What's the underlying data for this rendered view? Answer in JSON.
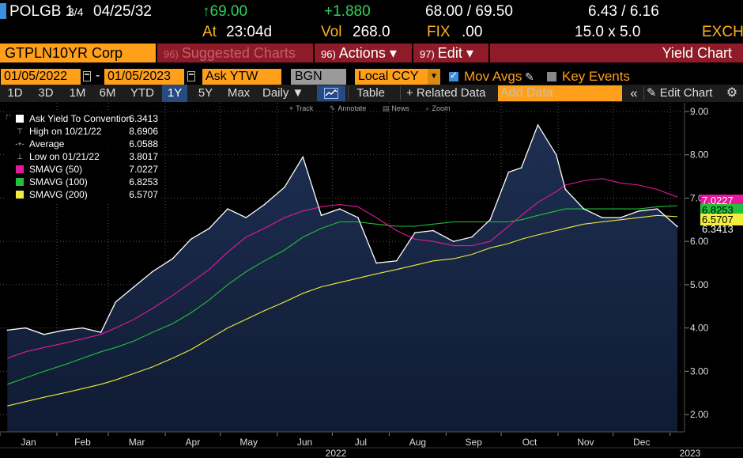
{
  "quote": {
    "security": "POLGB 1",
    "fraction": "3/4",
    "maturity": "04/25/32",
    "last_price": "↑69.00",
    "change": "+1.880",
    "bid_ask": "68.00 / 69.50",
    "yields": "6.43 / 6.16",
    "time_prefix": "At",
    "time": "23:04d",
    "vol_label": "Vol",
    "vol": "268.0",
    "fix_label": "FIX",
    "fix": ".00",
    "size": "15.0 x 5.0",
    "exchange": "EXCH"
  },
  "command_bar": {
    "ticker": "GTPLN10YR Corp",
    "suggested_num": "96)",
    "suggested_label": "Suggested Charts",
    "actions_num": "96)",
    "actions_label": "Actions ▾",
    "edit_num": "97)",
    "edit_label": "Edit ▾",
    "title": "Yield Chart"
  },
  "options": {
    "start_date": "01/05/2022",
    "end_date": "01/05/2023",
    "date_separator": "-",
    "field": "Ask YTW",
    "source": "BGN",
    "currency": "Local CCY",
    "mov_avgs": "Mov Avgs",
    "key_events": "Key Events"
  },
  "period_bar": {
    "periods": [
      "1D",
      "3D",
      "1M",
      "6M",
      "YTD",
      "1Y",
      "5Y",
      "Max"
    ],
    "active": "1Y",
    "frequency": "Daily ▼",
    "table": "Table",
    "related": "+ Related Data",
    "add_data_placeholder": "Add Data",
    "collapse": "«",
    "edit_chart": "✎ Edit Chart",
    "settings": "⚙"
  },
  "mini_toolbar": {
    "track": "Track",
    "annotate": "Annotate",
    "news": "News",
    "zoom": "Zoom"
  },
  "legend": [
    {
      "label": "Ask Yield To Convention",
      "value": "6.3413",
      "color": "#ffffff",
      "kind": "swatch"
    },
    {
      "label": "High on 10/21/22",
      "value": "8.6906",
      "color": "#cccccc",
      "kind": "high"
    },
    {
      "label": "Average",
      "value": "6.0588",
      "color": "#cccccc",
      "kind": "avg"
    },
    {
      "label": "Low on 01/21/22",
      "value": "3.8017",
      "color": "#cccccc",
      "kind": "low"
    },
    {
      "label": "SMAVG (50)",
      "value": "7.0227",
      "color": "#e6199b",
      "kind": "swatch"
    },
    {
      "label": "SMAVG (100)",
      "value": "6.8253",
      "color": "#21c13a",
      "kind": "swatch"
    },
    {
      "label": "SMAVG (200)",
      "value": "6.5707",
      "color": "#f2ec3c",
      "kind": "swatch"
    }
  ],
  "price_tags": [
    {
      "value": "7.0227",
      "color": "#e6199b"
    },
    {
      "value": "6.8253",
      "color": "#21c13a"
    },
    {
      "value": "6.5707",
      "color": "#f2ec3c"
    },
    {
      "value": "6.3413",
      "color": "#ffffff"
    }
  ],
  "chart_data": {
    "type": "area",
    "ylim": [
      1.6,
      9.2
    ],
    "y_ticks": [
      "2.00",
      "3.00",
      "4.00",
      "5.00",
      "6.00",
      "7.00",
      "8.00",
      "9.00"
    ],
    "x_months": [
      "Jan",
      "Feb",
      "Mar",
      "Apr",
      "May",
      "Jun",
      "Jul",
      "Aug",
      "Sep",
      "Oct",
      "Nov",
      "Dec"
    ],
    "x_year_labels": [
      "2022",
      "2023"
    ],
    "grid": true,
    "x": [
      "2022-01-05",
      "2022-01-15",
      "2022-01-25",
      "2022-02-05",
      "2022-02-15",
      "2022-02-25",
      "2022-03-05",
      "2022-03-15",
      "2022-03-25",
      "2022-04-05",
      "2022-04-15",
      "2022-04-25",
      "2022-05-05",
      "2022-05-15",
      "2022-05-25",
      "2022-06-05",
      "2022-06-15",
      "2022-06-25",
      "2022-07-05",
      "2022-07-15",
      "2022-07-25",
      "2022-08-05",
      "2022-08-15",
      "2022-08-25",
      "2022-09-05",
      "2022-09-15",
      "2022-09-25",
      "2022-10-05",
      "2022-10-12",
      "2022-10-21",
      "2022-10-31",
      "2022-11-05",
      "2022-11-15",
      "2022-11-25",
      "2022-12-05",
      "2022-12-15",
      "2022-12-25",
      "2023-01-05"
    ],
    "series": [
      {
        "name": "Ask Yield To Convention",
        "color": "#ffffff",
        "values": [
          3.95,
          4.0,
          3.85,
          3.95,
          4.0,
          3.9,
          4.6,
          4.95,
          5.3,
          5.6,
          6.05,
          6.3,
          6.75,
          6.55,
          6.85,
          7.25,
          7.95,
          6.6,
          6.75,
          6.55,
          5.5,
          5.55,
          6.2,
          6.25,
          6.0,
          6.1,
          6.5,
          7.6,
          7.7,
          8.6906,
          8.0,
          7.2,
          6.75,
          6.55,
          6.55,
          6.7,
          6.75,
          6.3413
        ]
      },
      {
        "name": "SMAVG (50)",
        "color": "#e6199b",
        "values": [
          3.3,
          3.45,
          3.55,
          3.65,
          3.75,
          3.85,
          4.0,
          4.2,
          4.45,
          4.75,
          5.05,
          5.35,
          5.75,
          6.1,
          6.3,
          6.55,
          6.7,
          6.8,
          6.85,
          6.8,
          6.55,
          6.25,
          6.05,
          6.0,
          5.9,
          5.9,
          6.0,
          6.35,
          6.6,
          6.9,
          7.15,
          7.3,
          7.4,
          7.45,
          7.35,
          7.3,
          7.2,
          7.0227
        ]
      },
      {
        "name": "SMAVG (100)",
        "color": "#21c13a",
        "values": [
          2.7,
          2.85,
          3.0,
          3.15,
          3.3,
          3.45,
          3.55,
          3.7,
          3.9,
          4.1,
          4.35,
          4.65,
          5.0,
          5.3,
          5.55,
          5.8,
          6.1,
          6.3,
          6.45,
          6.45,
          6.4,
          6.35,
          6.35,
          6.4,
          6.45,
          6.45,
          6.45,
          6.45,
          6.5,
          6.6,
          6.7,
          6.75,
          6.75,
          6.75,
          6.75,
          6.75,
          6.8,
          6.8253
        ]
      },
      {
        "name": "SMAVG (200)",
        "color": "#f2ec3c",
        "values": [
          2.2,
          2.3,
          2.4,
          2.5,
          2.6,
          2.7,
          2.8,
          2.95,
          3.1,
          3.3,
          3.5,
          3.75,
          4.0,
          4.2,
          4.4,
          4.6,
          4.8,
          4.95,
          5.05,
          5.15,
          5.25,
          5.35,
          5.45,
          5.55,
          5.6,
          5.7,
          5.85,
          5.95,
          6.05,
          6.15,
          6.25,
          6.3,
          6.4,
          6.45,
          6.5,
          6.55,
          6.6,
          6.5707
        ]
      }
    ]
  }
}
